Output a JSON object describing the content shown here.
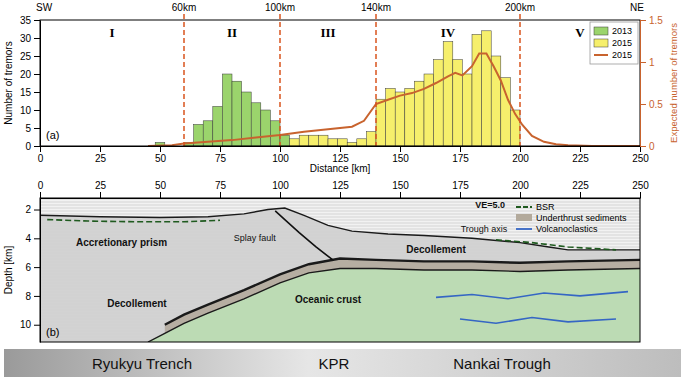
{
  "chart_data": [
    {
      "type": "histogram",
      "x_label": "Distance [km]",
      "y_label": "Number of tremors",
      "y2_label": "Expected number of tremors",
      "panel_label": "(a)",
      "direction_labels": [
        "SW",
        "NE"
      ],
      "boundaries": [
        {
          "value": 60,
          "label": "60km"
        },
        {
          "value": 100,
          "label": "100km"
        },
        {
          "value": 140,
          "label": "140km"
        },
        {
          "value": 200,
          "label": "200km"
        }
      ],
      "regions": [
        "I",
        "II",
        "III",
        "IV",
        "V"
      ],
      "xlim": [
        0,
        250
      ],
      "xticks": [
        0,
        25,
        50,
        75,
        100,
        125,
        150,
        175,
        200,
        225,
        250
      ],
      "ylim": [
        0,
        35
      ],
      "yticks": [
        0,
        5,
        10,
        15,
        20,
        25,
        30,
        35
      ],
      "y2lim": [
        0,
        1.5
      ],
      "y2ticks": [
        0,
        0.5,
        1,
        1.5
      ],
      "legend": "upper right",
      "bins": [
        44,
        48,
        52,
        56,
        60,
        64,
        68,
        72,
        76,
        80,
        84,
        88,
        92,
        96,
        100,
        104,
        108,
        112,
        116,
        120,
        124,
        128,
        132,
        136,
        140,
        144,
        148,
        152,
        156,
        160,
        164,
        168,
        172,
        176,
        180,
        184,
        188,
        192,
        196,
        200,
        204
      ],
      "series": [
        {
          "name": "2013",
          "type": "bar",
          "color": "#9bd46c",
          "values": [
            0,
            1,
            0,
            0,
            1,
            6,
            7,
            11,
            20,
            18,
            15,
            12,
            10,
            7,
            3,
            0,
            0,
            0,
            0,
            0,
            0,
            0,
            0,
            0,
            0,
            0,
            0,
            0,
            0,
            0,
            0,
            0,
            0,
            0,
            0,
            0,
            0,
            0,
            0,
            0
          ]
        },
        {
          "name": "2015",
          "type": "bar",
          "color": "#f6ef6c",
          "values": [
            0,
            0,
            0,
            0,
            0,
            0,
            0,
            0,
            0,
            0,
            0,
            0,
            0,
            0,
            0,
            2,
            3,
            3,
            3,
            2,
            2,
            1,
            2,
            4,
            13,
            16,
            15,
            16,
            18,
            20,
            24,
            29,
            24,
            20,
            31,
            32,
            25,
            19,
            10,
            0
          ]
        },
        {
          "name": "2015",
          "type": "line",
          "axis": "y2",
          "color": "#c8632e",
          "x": [
            45,
            55,
            60,
            70,
            80,
            90,
            100,
            110,
            120,
            130,
            135,
            140,
            145,
            150,
            155,
            160,
            165,
            170,
            173,
            176,
            180,
            183,
            186,
            189,
            192,
            195,
            198,
            201,
            205,
            210,
            215,
            220,
            230,
            240,
            250
          ],
          "values": [
            0,
            0.01,
            0.03,
            0.05,
            0.07,
            0.1,
            0.13,
            0.17,
            0.2,
            0.23,
            0.3,
            0.5,
            0.55,
            0.6,
            0.63,
            0.68,
            0.75,
            0.83,
            0.87,
            0.84,
            0.95,
            1.1,
            1.1,
            0.95,
            0.78,
            0.55,
            0.38,
            0.25,
            0.12,
            0.05,
            0.02,
            0.01,
            0,
            0,
            0
          ]
        }
      ]
    },
    {
      "type": "section",
      "y_label": "Depth [km]",
      "panel_label": "(b)",
      "xlim": [
        0,
        250
      ],
      "xticks": [
        0,
        25,
        50,
        75,
        100,
        125,
        150,
        175,
        200,
        225,
        250
      ],
      "ylim": [
        1.2,
        11.2
      ],
      "yticks": [
        2,
        4,
        6,
        8,
        10
      ],
      "legend": "upper right",
      "annotations": [
        "Accretionary prism",
        "Splay fault",
        "Decollement",
        "Decollement",
        "Trough axis",
        "Oceanic crust",
        "VE=5.0"
      ],
      "regions": [
        "Ryukyu Trench",
        "KPR",
        "Nankai Trough"
      ],
      "series": [
        {
          "type": "area",
          "color": "#cfcfcf",
          "x": [
            0,
            25,
            50,
            70,
            85,
            95,
            102,
            110,
            120,
            130,
            145,
            160,
            180,
            200,
            212,
            220,
            250
          ],
          "values": [
            2.4,
            2.5,
            2.55,
            2.5,
            2.3,
            2.0,
            1.9,
            2.4,
            3.1,
            3.5,
            3.7,
            3.8,
            4.0,
            4.3,
            4.6,
            4.8,
            4.8
          ]
        },
        {
          "name": "BSR",
          "type": "line",
          "line_style": "dashed",
          "color": "#1f5a1f",
          "x": [
            3,
            20,
            40,
            60,
            75,
            130,
            190,
            205,
            220,
            240
          ],
          "values": [
            2.7,
            2.8,
            2.85,
            2.85,
            2.75,
            null,
            4.1,
            4.3,
            4.6,
            4.8
          ]
        },
        {
          "name": "Underthrust sediments",
          "type": "area",
          "color": "#b3aa9c",
          "x": [
            52,
            60,
            70,
            85,
            100,
            112,
            125,
            140,
            160,
            180,
            200,
            220,
            250
          ],
          "values": [
            10.0,
            9.3,
            8.6,
            7.6,
            6.5,
            5.8,
            5.4,
            5.5,
            5.6,
            5.6,
            5.7,
            5.6,
            5.5
          ],
          "low": [
            10.6,
            9.9,
            9.2,
            8.2,
            7.1,
            6.4,
            6.1,
            6.1,
            6.2,
            6.2,
            6.3,
            6.2,
            6.1
          ]
        },
        {
          "type": "area",
          "color": "#b9dcb0",
          "x": [
            45,
            52,
            60,
            70,
            85,
            100,
            112,
            125,
            140,
            160,
            180,
            200,
            220,
            250
          ],
          "values": [
            11.2,
            10.6,
            9.9,
            9.2,
            8.2,
            7.1,
            6.4,
            6.1,
            6.1,
            6.2,
            6.2,
            6.3,
            6.2,
            6.1
          ]
        },
        {
          "name": "Volcanoclastics",
          "type": "line",
          "color": "#3566c4",
          "x": [
            165,
            180,
            195,
            210,
            225,
            245,
            250,
            175,
            190,
            205,
            220,
            240
          ],
          "values": [
            8.1,
            7.9,
            8.2,
            7.8,
            8.0,
            7.7,
            null,
            9.6,
            9.9,
            9.5,
            9.8,
            9.6
          ]
        },
        {
          "type": "line",
          "color": "#111111",
          "x": [
            122,
            115,
            108,
            102,
            98
          ],
          "values": [
            5.5,
            4.6,
            3.6,
            2.7,
            2.1
          ]
        }
      ]
    }
  ]
}
